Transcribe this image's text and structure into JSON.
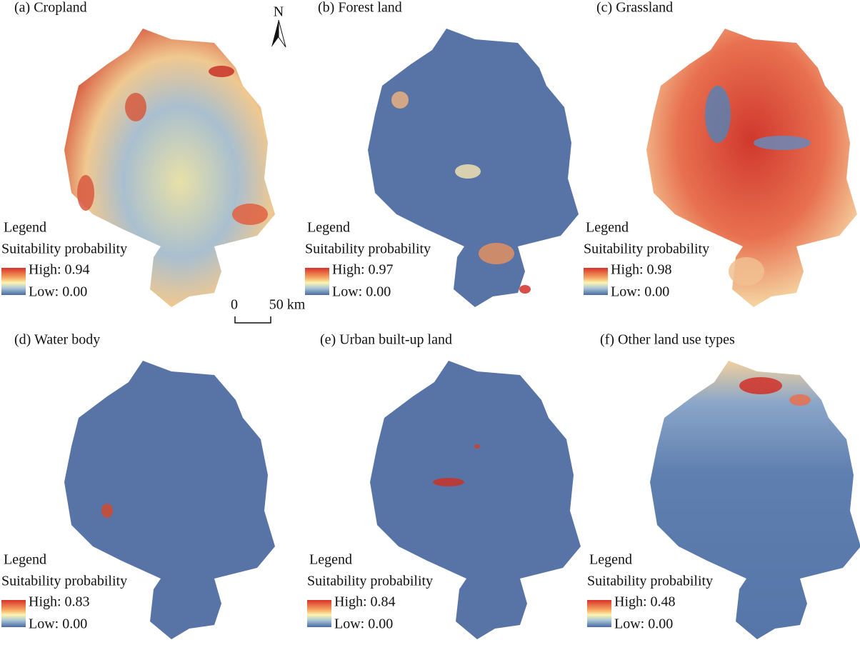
{
  "north_arrow": {
    "label": "N"
  },
  "scale_bar": {
    "start": "0",
    "end": "50 km"
  },
  "panels": [
    {
      "title": "(a) Cropland",
      "legend": {
        "title": "Legend",
        "subtitle": "Suitability probability",
        "high": "High: 0.94",
        "low": "Low: 0.00"
      }
    },
    {
      "title": "(b) Forest land",
      "legend": {
        "title": "Legend",
        "subtitle": "Suitability probability",
        "high": "High: 0.97",
        "low": "Low: 0.00"
      }
    },
    {
      "title": "(c) Grassland",
      "legend": {
        "title": "Legend",
        "subtitle": "Suitability probability",
        "high": "High: 0.98",
        "low": "Low: 0.00"
      }
    },
    {
      "title": "(d) Water body",
      "legend": {
        "title": "Legend",
        "subtitle": "Suitability probability",
        "high": "High: 0.83",
        "low": "Low: 0.00"
      }
    },
    {
      "title": "(e) Urban built-up land",
      "legend": {
        "title": "Legend",
        "subtitle": "Suitability probability",
        "high": "High: 0.84",
        "low": "Low: 0.00"
      }
    },
    {
      "title": "(f) Other land use types",
      "legend": {
        "title": "Legend",
        "subtitle": "Suitability probability",
        "high": "High: 0.48",
        "low": "Low: 0.00"
      }
    }
  ]
}
